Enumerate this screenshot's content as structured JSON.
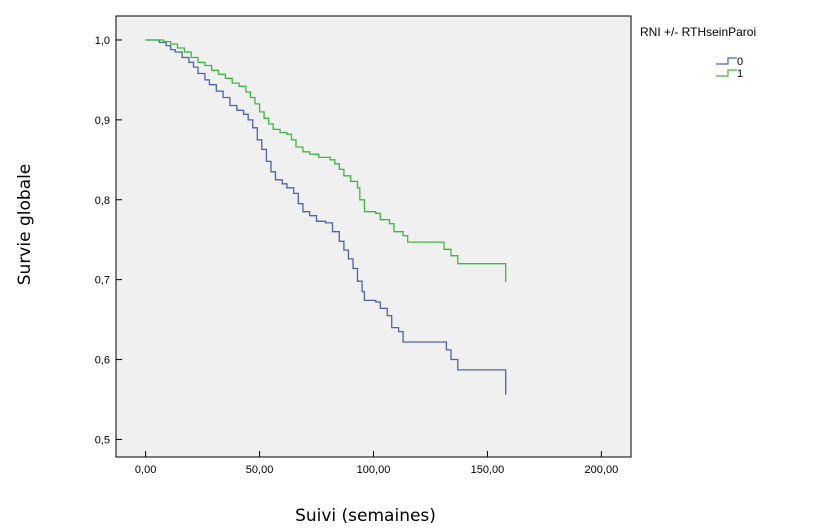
{
  "chart_data": {
    "type": "line",
    "step": true,
    "xlabel": "Suivi (semaines)",
    "ylabel": "Survie globale",
    "xlim": [
      -13,
      213
    ],
    "ylim": [
      0.478,
      1.03
    ],
    "xticks": [
      0,
      50,
      100,
      150,
      200
    ],
    "xtick_labels": [
      "0,00",
      "50,00",
      "100,00",
      "150,00",
      "200,00"
    ],
    "yticks": [
      0.5,
      0.6,
      0.7,
      0.8,
      0.9,
      1.0
    ],
    "ytick_labels": [
      "0,5",
      "0,6",
      "0,7",
      "0,8",
      "0,9",
      "1,0"
    ],
    "grid": false,
    "background": "#f0f0f0",
    "legend": {
      "title": "RNI +/- RTHseinParoi",
      "placement": "outside-top-right"
    },
    "series": [
      {
        "name": "0",
        "color": "#4a63b4",
        "points": [
          [
            0,
            1.0
          ],
          [
            3,
            1.0
          ],
          [
            6,
            0.997
          ],
          [
            9,
            0.993
          ],
          [
            11,
            0.988
          ],
          [
            13,
            0.985
          ],
          [
            16,
            0.978
          ],
          [
            19,
            0.972
          ],
          [
            21,
            0.966
          ],
          [
            23,
            0.958
          ],
          [
            26,
            0.95
          ],
          [
            28,
            0.944
          ],
          [
            31,
            0.936
          ],
          [
            34,
            0.928
          ],
          [
            37,
            0.918
          ],
          [
            40,
            0.912
          ],
          [
            43,
            0.907
          ],
          [
            45,
            0.9
          ],
          [
            47,
            0.89
          ],
          [
            49,
            0.875
          ],
          [
            51,
            0.863
          ],
          [
            53,
            0.848
          ],
          [
            55,
            0.835
          ],
          [
            57,
            0.825
          ],
          [
            60,
            0.82
          ],
          [
            62,
            0.815
          ],
          [
            65,
            0.808
          ],
          [
            67,
            0.795
          ],
          [
            69,
            0.785
          ],
          [
            72,
            0.78
          ],
          [
            75,
            0.773
          ],
          [
            79,
            0.771
          ],
          [
            82,
            0.76
          ],
          [
            85,
            0.748
          ],
          [
            87,
            0.737
          ],
          [
            89,
            0.726
          ],
          [
            91,
            0.714
          ],
          [
            93,
            0.698
          ],
          [
            95,
            0.685
          ],
          [
            96,
            0.674
          ],
          [
            101,
            0.672
          ],
          [
            103,
            0.664
          ],
          [
            106,
            0.655
          ],
          [
            108,
            0.64
          ],
          [
            111,
            0.635
          ],
          [
            113,
            0.622
          ],
          [
            132,
            0.612
          ],
          [
            134,
            0.6
          ],
          [
            137,
            0.587
          ],
          [
            158,
            0.587
          ],
          [
            158,
            0.556
          ]
        ]
      },
      {
        "name": "1",
        "color": "#3dba3d",
        "points": [
          [
            0,
            1.0
          ],
          [
            5,
            1.0
          ],
          [
            8,
            0.998
          ],
          [
            11,
            0.995
          ],
          [
            14,
            0.99
          ],
          [
            17,
            0.985
          ],
          [
            20,
            0.978
          ],
          [
            23,
            0.972
          ],
          [
            26,
            0.968
          ],
          [
            29,
            0.962
          ],
          [
            32,
            0.957
          ],
          [
            35,
            0.952
          ],
          [
            38,
            0.946
          ],
          [
            41,
            0.942
          ],
          [
            44,
            0.935
          ],
          [
            46,
            0.928
          ],
          [
            48,
            0.92
          ],
          [
            50,
            0.91
          ],
          [
            52,
            0.902
          ],
          [
            54,
            0.895
          ],
          [
            56,
            0.888
          ],
          [
            59,
            0.884
          ],
          [
            62,
            0.882
          ],
          [
            64,
            0.875
          ],
          [
            66,
            0.866
          ],
          [
            69,
            0.86
          ],
          [
            72,
            0.857
          ],
          [
            76,
            0.853
          ],
          [
            81,
            0.85
          ],
          [
            83,
            0.845
          ],
          [
            85,
            0.838
          ],
          [
            87,
            0.83
          ],
          [
            90,
            0.823
          ],
          [
            93,
            0.815
          ],
          [
            94,
            0.8
          ],
          [
            96,
            0.785
          ],
          [
            101,
            0.783
          ],
          [
            103,
            0.775
          ],
          [
            107,
            0.77
          ],
          [
            109,
            0.76
          ],
          [
            113,
            0.755
          ],
          [
            115,
            0.747
          ],
          [
            131,
            0.738
          ],
          [
            134,
            0.73
          ],
          [
            137,
            0.72
          ],
          [
            158,
            0.72
          ],
          [
            158,
            0.697
          ]
        ]
      }
    ]
  }
}
